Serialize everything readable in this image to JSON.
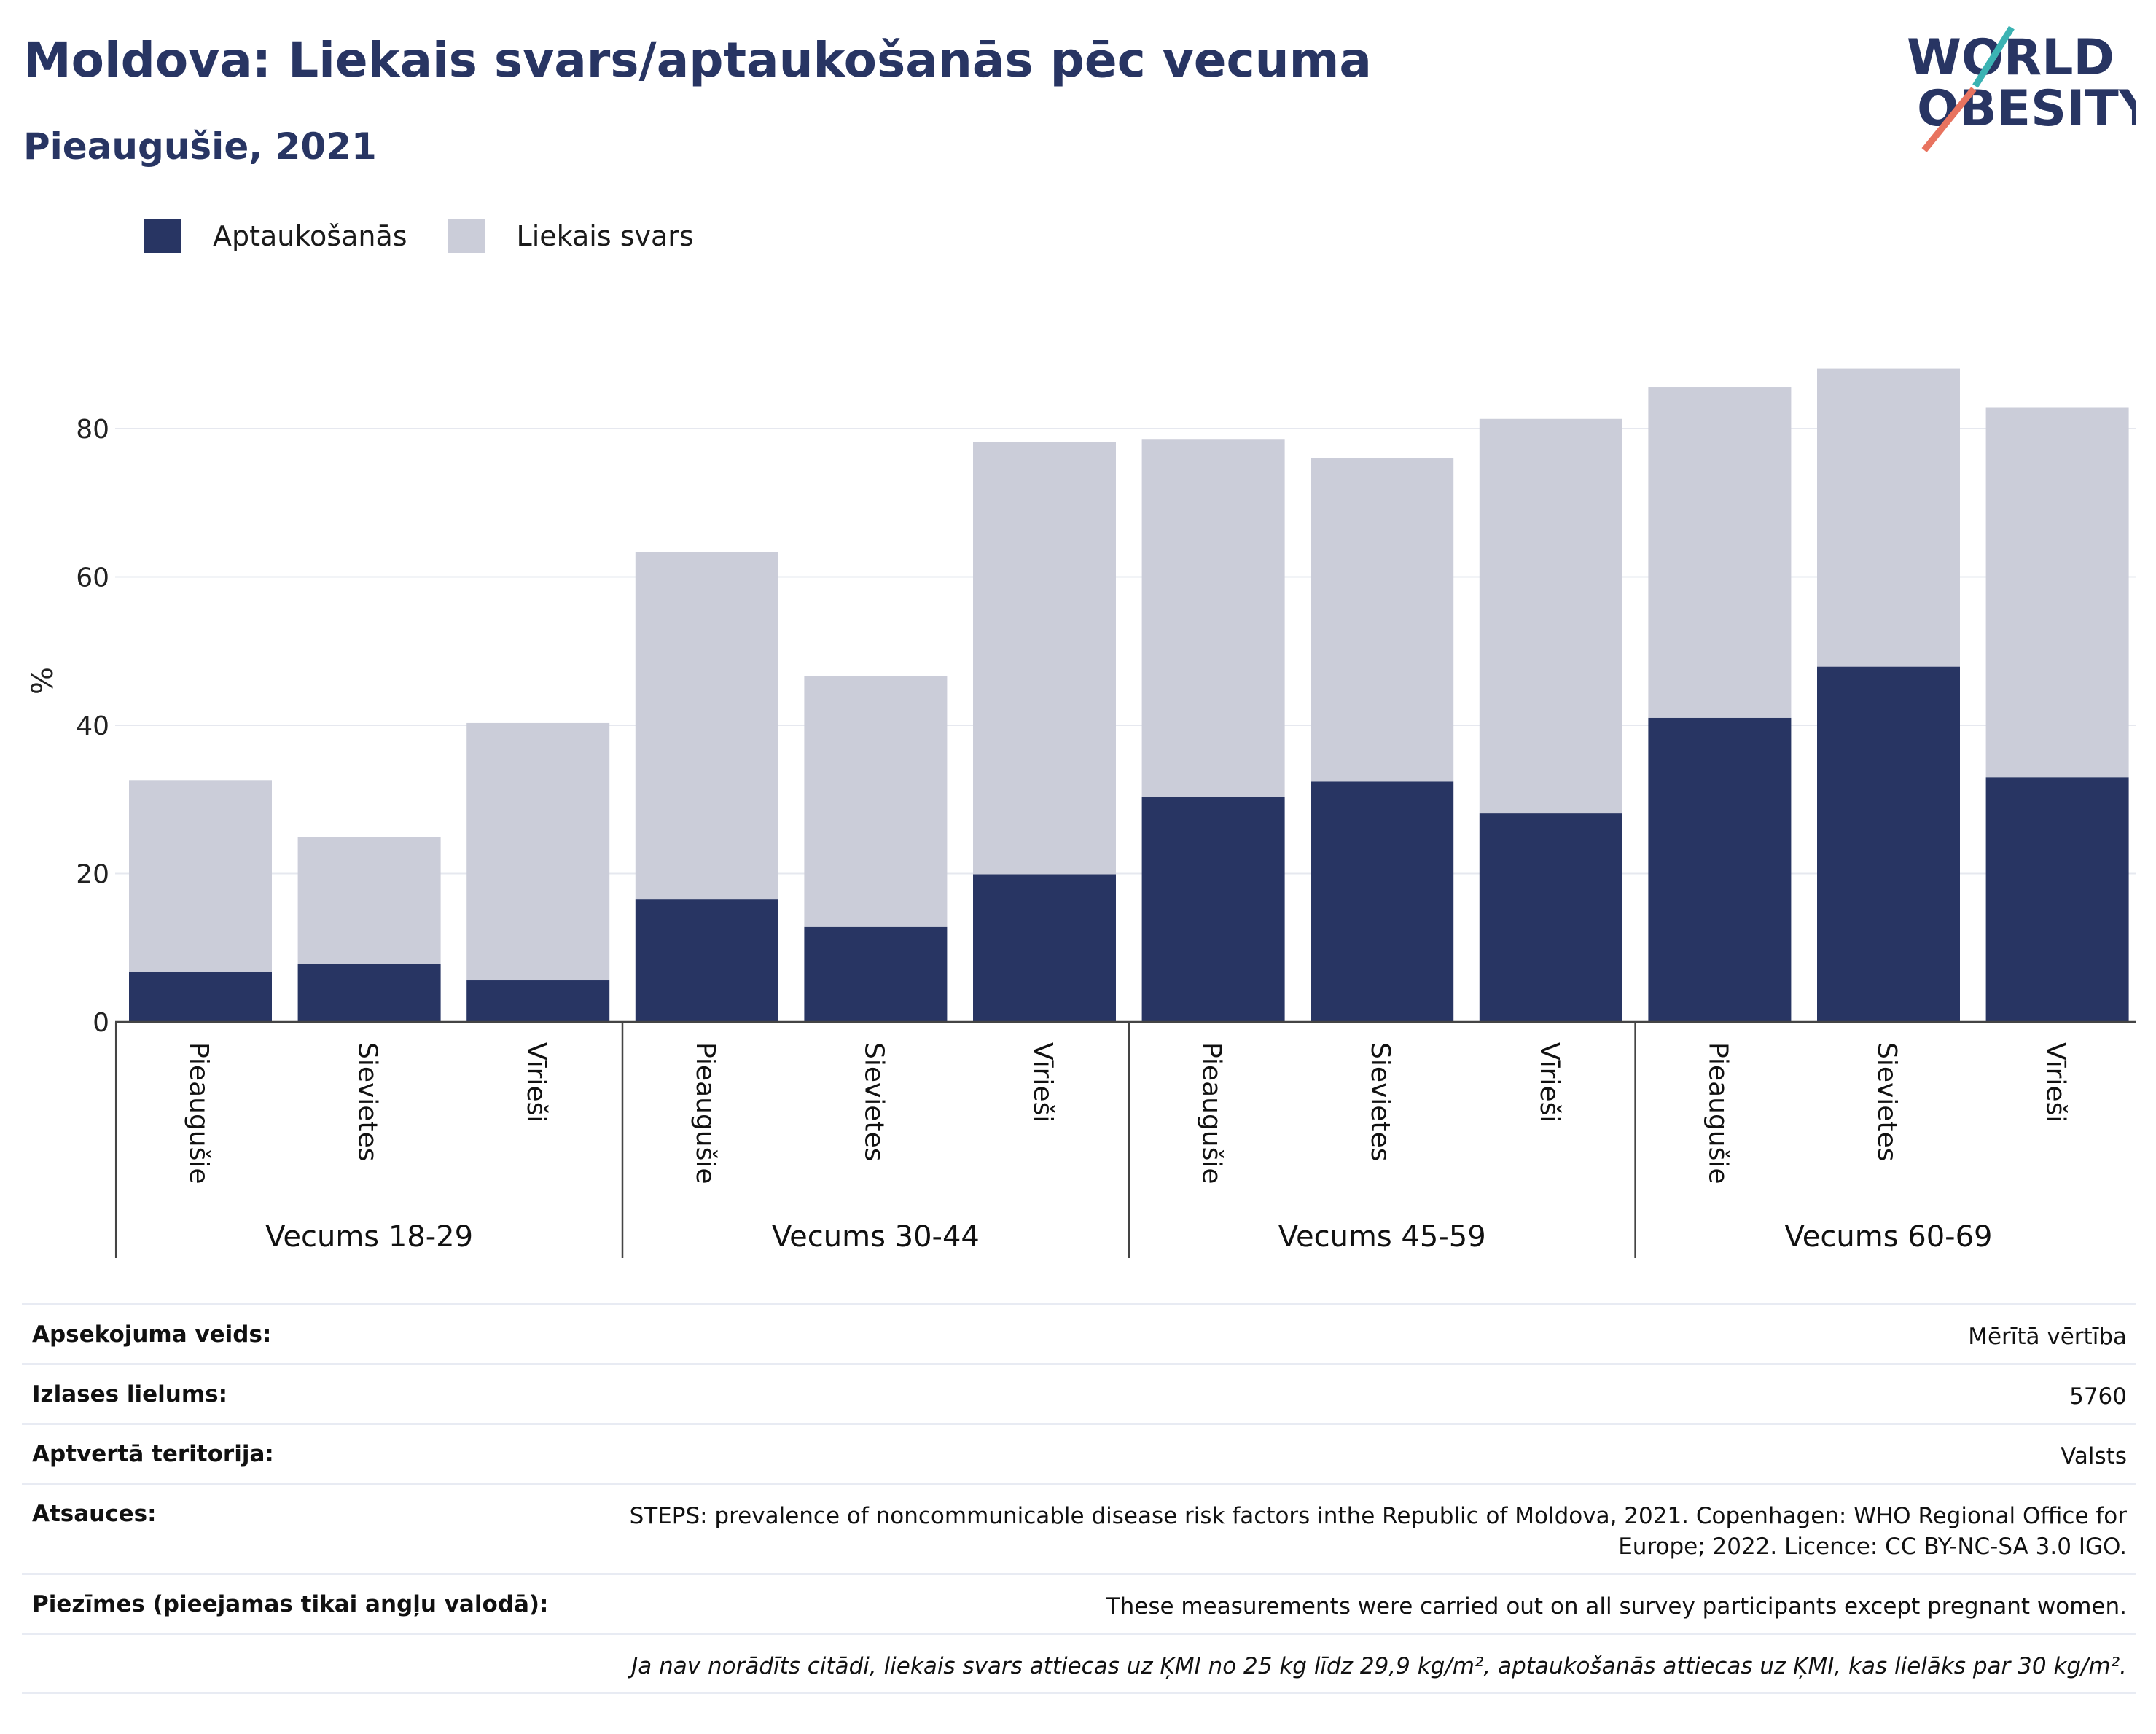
{
  "header": {
    "title": "Moldova: Liekais svars/aptaukošanās pēc vecuma",
    "subtitle": "Pieaugušie, 2021"
  },
  "logo": {
    "line1": "WORLD",
    "line2": "OBESITY",
    "icon": "world-obesity-logo"
  },
  "legend": {
    "items": [
      {
        "label": "Aptaukošanās",
        "color": "#283563"
      },
      {
        "label": "Liekais svars",
        "color": "#cbcdd9"
      }
    ]
  },
  "chart_data": {
    "type": "bar",
    "stacked": true,
    "ylabel": "%",
    "ylim": [
      0,
      92
    ],
    "yticks": [
      0,
      20,
      40,
      60,
      80
    ],
    "grid": true,
    "legend_position": "top-left",
    "groups": [
      "Vecums 18-29",
      "Vecums 30-44",
      "Vecums 45-59",
      "Vecums 60-69"
    ],
    "categories": [
      "Pieaugušie",
      "Sievietes",
      "Vīrieši",
      "Pieaugušie",
      "Sievietes",
      "Vīrieši",
      "Pieaugušie",
      "Sievietes",
      "Vīrieši",
      "Pieaugušie",
      "Sievietes",
      "Vīrieši"
    ],
    "series": [
      {
        "name": "Aptaukošanās",
        "color": "#283563",
        "values": [
          6.7,
          7.8,
          5.6,
          16.5,
          12.8,
          19.9,
          30.3,
          32.4,
          28.1,
          41.0,
          47.9,
          33.0
        ]
      },
      {
        "name": "Liekais svars",
        "color": "#cbcdd9",
        "values": [
          25.9,
          17.1,
          34.7,
          46.8,
          33.8,
          58.3,
          48.3,
          43.6,
          53.2,
          44.6,
          40.2,
          49.8
        ]
      }
    ]
  },
  "meta": [
    {
      "label": "Apsekojuma veids:",
      "value": "Mērītā vērtība"
    },
    {
      "label": "Izlases lielums:",
      "value": "5760"
    },
    {
      "label": "Aptvertā teritorija:",
      "value": "Valsts"
    },
    {
      "label": "Atsauces:",
      "value": "STEPS: prevalence of noncommunicable disease risk factors inthe Republic of Moldova, 2021. Copenhagen: WHO Regional Office for Europe; 2022. Licence: CC BY-NC-SA 3.0 IGO."
    },
    {
      "label": "Piezīmes (pieejamas tikai angļu valodā):",
      "value": "These measurements were carried out on all survey participants except pregnant women."
    }
  ],
  "footnote": "Ja nav norādīts citādi, liekais svars attiecas uz ĶMI no 25 kg līdz 29,9 kg/m², aptaukošanās attiecas uz ĶMI, kas lielāks par 30 kg/m²."
}
